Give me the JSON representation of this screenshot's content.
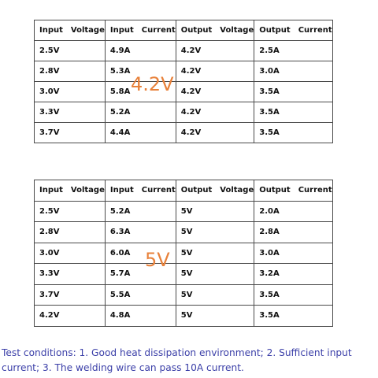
{
  "table1": {
    "overlay_label": "4.2V",
    "headers": [
      {
        "a": "Input",
        "b": "Voltage"
      },
      {
        "a": "Input",
        "b": "Current"
      },
      {
        "a": "Output",
        "b": "Voltage"
      },
      {
        "a": "Output",
        "b": "Current"
      }
    ],
    "rows": [
      [
        "2.5V",
        "4.9A",
        "4.2V",
        "2.5A"
      ],
      [
        "2.8V",
        "5.3A",
        "4.2V",
        "3.0A"
      ],
      [
        "3.0V",
        "5.8A",
        "4.2V",
        "3.5A"
      ],
      [
        "3.3V",
        "5.2A",
        "4.2V",
        "3.5A"
      ],
      [
        "3.7V",
        "4.4A",
        "4.2V",
        "3.5A"
      ]
    ]
  },
  "table2": {
    "overlay_label": "5V",
    "headers": [
      {
        "a": "Input",
        "b": "Voltage"
      },
      {
        "a": "Input",
        "b": "Current"
      },
      {
        "a": "Output",
        "b": "Voltage"
      },
      {
        "a": "Output",
        "b": "Current"
      }
    ],
    "rows": [
      [
        "2.5V",
        "5.2A",
        "5V",
        "2.0A"
      ],
      [
        "2.8V",
        "6.3A",
        "5V",
        "2.8A"
      ],
      [
        "3.0V",
        "6.0A",
        "5V",
        "3.0A"
      ],
      [
        "3.3V",
        "5.7A",
        "5V",
        "3.2A"
      ],
      [
        "3.7V",
        "5.5A",
        "5V",
        "3.5A"
      ],
      [
        "4.2V",
        "4.8A",
        "5V",
        "3.5A"
      ]
    ]
  },
  "note": "Test conditions: 1. Good heat dissipation environment; 2. Sufficient input current; 3. The welding wire can pass 10A current.",
  "colors": {
    "overlay": "#e8813a",
    "note_text": "#3b3fa8",
    "border": "#4a4a4a"
  }
}
